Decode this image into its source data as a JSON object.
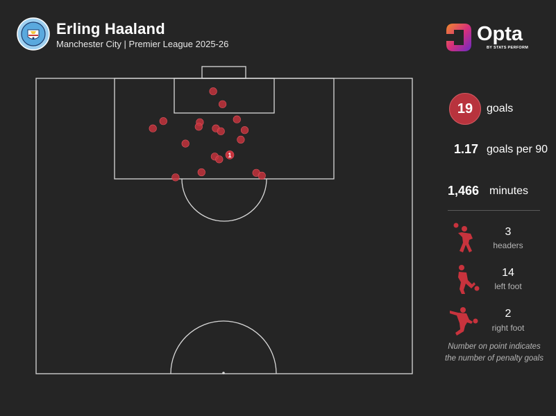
{
  "header": {
    "player_name": "Erling Haaland",
    "subtitle": "Manchester City | Premier League 2025-26",
    "badge_text": "MANCHESTER CITY",
    "brand_name": "Opta",
    "brand_sub": "BY STATS PERFORM"
  },
  "stats": {
    "goals_value": "19",
    "goals_label": "goals",
    "gp90_value": "1.17",
    "gp90_label": "goals per 90",
    "minutes_value": "1,466",
    "minutes_label": "minutes"
  },
  "shot_types": [
    {
      "count": "3",
      "label": "headers",
      "icon": "header-player-icon"
    },
    {
      "count": "14",
      "label": "left foot",
      "icon": "left-foot-player-icon"
    },
    {
      "count": "2",
      "label": "right foot",
      "icon": "right-foot-player-icon"
    }
  ],
  "note": {
    "line1": "Number on point indicates",
    "line2": "the number of penalty goals"
  },
  "colors": {
    "background": "#252525",
    "accent": "#b8333d",
    "shot": "#c8333d",
    "pitch_line": "#d9d9d9",
    "muted": "#b5b5b5"
  },
  "chart_data": {
    "type": "scatter",
    "description_units": "pitch coordinates in metres: x = distance from left touchline (0-68), y = distance from goal line (0-52.5)",
    "xlim": [
      0,
      68
    ],
    "ylim": [
      0,
      52.5
    ],
    "points": [
      {
        "x": 32.0,
        "y": 2.3
      },
      {
        "x": 33.7,
        "y": 4.6
      },
      {
        "x": 23.0,
        "y": 7.6
      },
      {
        "x": 29.6,
        "y": 7.8
      },
      {
        "x": 36.3,
        "y": 7.3
      },
      {
        "x": 21.1,
        "y": 8.9
      },
      {
        "x": 29.4,
        "y": 8.6
      },
      {
        "x": 32.5,
        "y": 8.9
      },
      {
        "x": 33.4,
        "y": 9.4
      },
      {
        "x": 37.7,
        "y": 9.2
      },
      {
        "x": 37.0,
        "y": 10.9
      },
      {
        "x": 27.0,
        "y": 11.6
      },
      {
        "x": 32.3,
        "y": 13.9
      },
      {
        "x": 33.1,
        "y": 14.4
      },
      {
        "x": 29.9,
        "y": 16.7
      },
      {
        "x": 25.2,
        "y": 17.6
      },
      {
        "x": 39.8,
        "y": 16.8
      },
      {
        "x": 40.8,
        "y": 17.3
      },
      {
        "x": 35.0,
        "y": 13.6,
        "penalty_goals": "1"
      }
    ]
  }
}
